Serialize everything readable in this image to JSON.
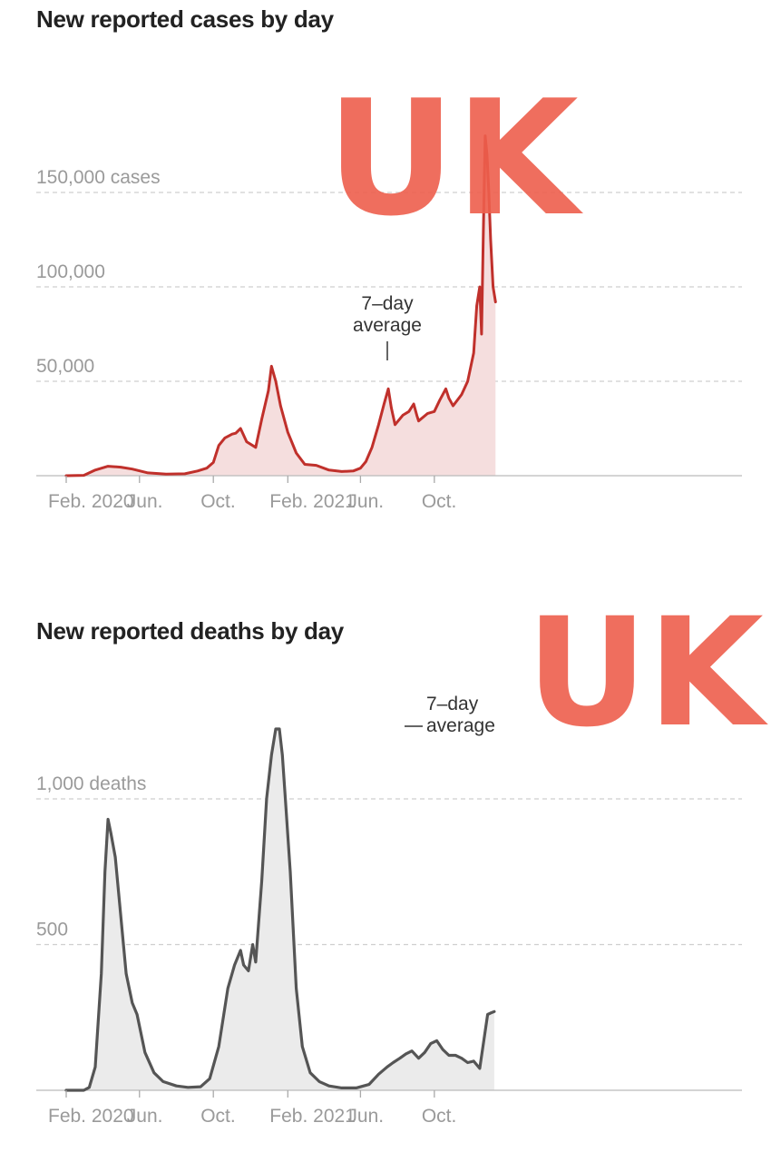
{
  "chart_data": [
    {
      "type": "area",
      "title": "New reported cases by day",
      "series_color": "#c0302b",
      "fill_color": "#f5dede",
      "x_ticks": [
        "Feb. 2020",
        "Jun.",
        "Oct.",
        "Feb. 2021",
        "Jun.",
        "Oct."
      ],
      "y_ticks": [
        {
          "value": 150000,
          "label": "150,000 cases"
        },
        {
          "value": 100000,
          "label": "100,000"
        },
        {
          "value": 50000,
          "label": "50,000"
        }
      ],
      "ylim": [
        0,
        160000
      ],
      "annotation": {
        "line1": "7–day",
        "line2": "average"
      },
      "handwritten_note": "UK",
      "series": [
        {
          "x": [
            "2020-02-01",
            "2020-03-01",
            "2020-03-20",
            "2020-04-10",
            "2020-05-01",
            "2020-05-20",
            "2020-06-15",
            "2020-07-15",
            "2020-08-15",
            "2020-09-05",
            "2020-09-20",
            "2020-10-01",
            "2020-10-10",
            "2020-10-20",
            "2020-11-01",
            "2020-11-07",
            "2020-11-15",
            "2020-11-25",
            "2020-12-10",
            "2020-12-20",
            "2020-12-31",
            "2021-01-05",
            "2021-01-12",
            "2021-01-20",
            "2021-02-01",
            "2021-02-15",
            "2021-03-01",
            "2021-03-20",
            "2021-04-10",
            "2021-05-01",
            "2021-05-20",
            "2021-06-01",
            "2021-06-10",
            "2021-06-20",
            "2021-07-01",
            "2021-07-10",
            "2021-07-17",
            "2021-07-22",
            "2021-07-28",
            "2021-08-10",
            "2021-08-20",
            "2021-08-28",
            "2021-09-02",
            "2021-09-05",
            "2021-09-20",
            "2021-10-01",
            "2021-10-10",
            "2021-10-20",
            "2021-10-25",
            "2021-11-01",
            "2021-11-15",
            "2021-11-25",
            "2021-12-05",
            "2021-12-10",
            "2021-12-15",
            "2021-12-18",
            "2021-12-21",
            "2021-12-24",
            "2021-12-27",
            "2021-12-30",
            "2022-01-02",
            "2022-01-06",
            "2022-01-10"
          ],
          "values": [
            0,
            200,
            3000,
            5000,
            4500,
            3500,
            1500,
            800,
            1000,
            2500,
            4000,
            7000,
            16000,
            20000,
            22000,
            22500,
            25000,
            18000,
            15000,
            30000,
            45000,
            58000,
            50000,
            37000,
            23000,
            12000,
            6000,
            5500,
            3000,
            2200,
            2500,
            4000,
            7500,
            15000,
            27000,
            38000,
            46000,
            36000,
            27000,
            32000,
            34000,
            38000,
            32000,
            29000,
            33000,
            34000,
            40000,
            46000,
            41000,
            37000,
            43000,
            50000,
            65000,
            90000,
            100000,
            75000,
            130000,
            180000,
            170000,
            150000,
            125000,
            100000,
            92000
          ]
        }
      ]
    },
    {
      "type": "area",
      "title": "New reported deaths by day",
      "series_color": "#555555",
      "fill_color": "#ebebeb",
      "x_ticks": [
        "Feb. 2020",
        "Jun.",
        "Oct.",
        "Feb. 2021",
        "Jun.",
        "Oct."
      ],
      "y_ticks": [
        {
          "value": 1000,
          "label": "1,000 deaths"
        },
        {
          "value": 500,
          "label": "500"
        }
      ],
      "ylim": [
        0,
        1300
      ],
      "annotation": {
        "line1": "7–day",
        "line2": "average"
      },
      "handwritten_note": "UK",
      "series": [
        {
          "x": [
            "2020-02-01",
            "2020-03-01",
            "2020-03-10",
            "2020-03-20",
            "2020-03-30",
            "2020-04-05",
            "2020-04-10",
            "2020-04-15",
            "2020-04-22",
            "2020-05-01",
            "2020-05-10",
            "2020-05-20",
            "2020-05-28",
            "2020-06-10",
            "2020-06-25",
            "2020-07-10",
            "2020-08-01",
            "2020-08-20",
            "2020-09-10",
            "2020-09-25",
            "2020-10-10",
            "2020-10-25",
            "2020-11-05",
            "2020-11-15",
            "2020-11-20",
            "2020-11-28",
            "2020-12-05",
            "2020-12-10",
            "2020-12-20",
            "2020-12-28",
            "2021-01-05",
            "2021-01-12",
            "2021-01-18",
            "2021-01-23",
            "2021-01-28",
            "2021-02-05",
            "2021-02-15",
            "2021-02-25",
            "2021-03-10",
            "2021-03-25",
            "2021-04-10",
            "2021-05-01",
            "2021-05-25",
            "2021-06-15",
            "2021-07-01",
            "2021-07-15",
            "2021-07-25",
            "2021-08-05",
            "2021-08-15",
            "2021-08-25",
            "2021-09-05",
            "2021-09-15",
            "2021-09-25",
            "2021-10-05",
            "2021-10-15",
            "2021-10-25",
            "2021-11-05",
            "2021-11-15",
            "2021-11-25",
            "2021-12-05",
            "2021-12-15",
            "2021-12-22",
            "2021-12-28",
            "2022-01-02",
            "2022-01-08"
          ],
          "values": [
            0,
            0,
            10,
            80,
            400,
            750,
            930,
            880,
            800,
            600,
            400,
            300,
            260,
            130,
            60,
            30,
            15,
            10,
            12,
            40,
            150,
            350,
            430,
            480,
            430,
            410,
            500,
            440,
            720,
            1000,
            1150,
            1240,
            1240,
            1150,
            1000,
            750,
            350,
            150,
            60,
            30,
            15,
            8,
            8,
            20,
            55,
            80,
            95,
            110,
            125,
            135,
            110,
            130,
            160,
            170,
            140,
            120,
            120,
            110,
            95,
            100,
            75,
            175,
            260,
            265,
            270
          ]
        }
      ]
    }
  ]
}
